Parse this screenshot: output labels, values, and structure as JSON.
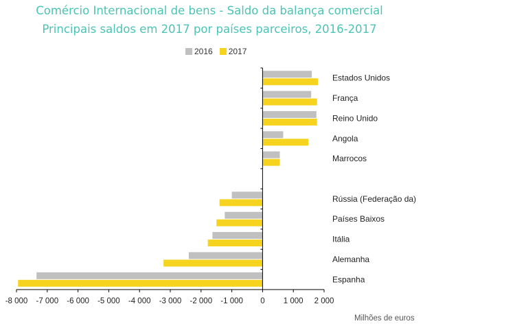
{
  "chart_data": {
    "type": "bar",
    "orientation": "horizontal",
    "title": "Comércio Internacional de bens - Saldo da balança comercial",
    "subtitle": "Principais saldos em 2017 por países parceiros, 2016-2017",
    "unit_label": "Milhões de euros",
    "xlim": [
      -8000,
      2000
    ],
    "xticks": [
      -8000,
      -7000,
      -6000,
      -5000,
      -4000,
      -3000,
      -2000,
      -1000,
      0,
      1000,
      2000
    ],
    "xtick_labels": [
      "-8 000",
      "-7 000",
      "-6 000",
      "-5 000",
      "-4 000",
      "-3 000",
      "-2 000",
      "-1 000",
      "0",
      "1 000",
      "2 000"
    ],
    "legend_position": "top",
    "grid": false,
    "categories": [
      "Estados Unidos",
      "França",
      "Reino Unido",
      "Angola",
      "Marrocos",
      "",
      "Rússia (Federação da)",
      "Países Baixos",
      "Itália",
      "Alemanha",
      "Espanha"
    ],
    "series": [
      {
        "name": "2016",
        "color": "#c0c0c0",
        "values": [
          1600,
          1580,
          1750,
          670,
          560,
          null,
          -1000,
          -1230,
          -1630,
          -2400,
          -7350
        ]
      },
      {
        "name": "2017",
        "color": "#f5d31e",
        "values": [
          1800,
          1770,
          1770,
          1490,
          560,
          null,
          -1400,
          -1500,
          -1780,
          -3220,
          -7950
        ]
      }
    ]
  }
}
